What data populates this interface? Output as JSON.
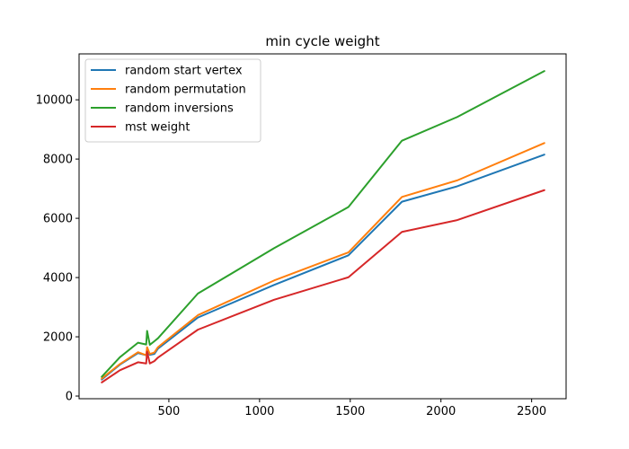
{
  "chart_data": {
    "type": "line",
    "title": "min cycle weight",
    "xlabel": "",
    "ylabel": "",
    "xlim": [
      5,
      2690
    ],
    "ylim": [
      -90,
      11550
    ],
    "xticks": [
      500,
      1000,
      1500,
      2000,
      2500
    ],
    "yticks": [
      0,
      2000,
      4000,
      6000,
      8000,
      10000
    ],
    "grid": false,
    "legend_position": "top-left",
    "series": [
      {
        "name": "random start vertex",
        "color": "#1f77b4",
        "x": [
          130,
          230,
          330,
          375,
          380,
          395,
          420,
          440,
          660,
          1080,
          1490,
          1785,
          2090,
          2570
        ],
        "y": [
          560,
          1060,
          1450,
          1380,
          1520,
          1390,
          1420,
          1600,
          2650,
          3750,
          4750,
          6560,
          7080,
          8150
        ]
      },
      {
        "name": "random permutation",
        "color": "#ff7f0e",
        "x": [
          130,
          230,
          330,
          375,
          380,
          395,
          420,
          440,
          660,
          1080,
          1490,
          1785,
          2090,
          2570
        ],
        "y": [
          590,
          1080,
          1480,
          1380,
          1650,
          1420,
          1470,
          1650,
          2730,
          3900,
          4850,
          6720,
          7280,
          8540
        ]
      },
      {
        "name": "random inversions",
        "color": "#2ca02c",
        "x": [
          130,
          230,
          330,
          375,
          380,
          395,
          420,
          440,
          660,
          1080,
          1490,
          1785,
          2090,
          2570
        ],
        "y": [
          650,
          1310,
          1800,
          1740,
          2200,
          1730,
          1850,
          1950,
          3460,
          4990,
          6380,
          8620,
          9420,
          10970
        ]
      },
      {
        "name": "mst weight",
        "color": "#d62728",
        "x": [
          130,
          230,
          330,
          375,
          380,
          395,
          420,
          440,
          660,
          1080,
          1490,
          1785,
          2090,
          2570
        ],
        "y": [
          460,
          870,
          1140,
          1100,
          1500,
          1100,
          1180,
          1300,
          2240,
          3250,
          4010,
          5540,
          5940,
          6950
        ]
      }
    ]
  }
}
